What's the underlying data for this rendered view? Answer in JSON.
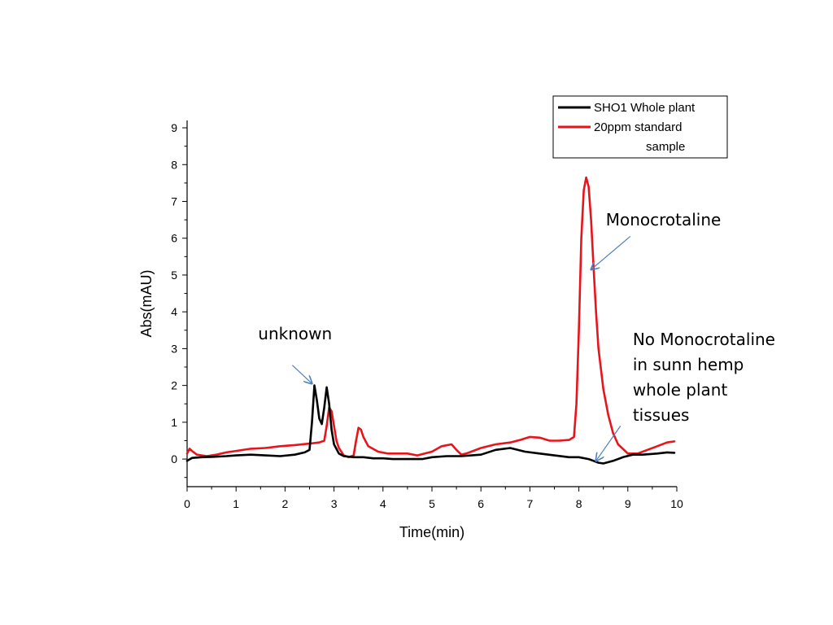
{
  "chart_data": {
    "type": "line",
    "xlabel": "Time(min)",
    "ylabel": "Abs(mAU)",
    "xlim": [
      0,
      10
    ],
    "ylim": [
      -0.75,
      9.2
    ],
    "x_ticks": [
      0,
      1,
      2,
      3,
      4,
      5,
      6,
      7,
      8,
      9,
      10
    ],
    "y_ticks": [
      0,
      1,
      2,
      3,
      4,
      5,
      6,
      7,
      8,
      9
    ],
    "grid": false,
    "legend_position": "top-right",
    "legend": [
      {
        "label_lines": [
          "SHO1 Whole plant"
        ],
        "color": "#000000"
      },
      {
        "label_lines": [
          "20ppm standard",
          "sample"
        ],
        "color": "#e8141b"
      }
    ],
    "series": [
      {
        "name": "SHO1 Whole plant",
        "color": "#000000",
        "x": [
          0,
          0.1,
          0.3,
          0.5,
          0.8,
          1.0,
          1.3,
          1.6,
          1.9,
          2.2,
          2.4,
          2.5,
          2.55,
          2.6,
          2.65,
          2.7,
          2.75,
          2.8,
          2.85,
          2.9,
          2.95,
          3.0,
          3.1,
          3.2,
          3.4,
          3.6,
          3.8,
          4.0,
          4.2,
          4.5,
          4.8,
          5.0,
          5.3,
          5.6,
          6.0,
          6.3,
          6.6,
          6.9,
          7.2,
          7.5,
          7.8,
          8.0,
          8.2,
          8.3,
          8.4,
          8.5,
          8.7,
          8.9,
          9.1,
          9.3,
          9.6,
          9.8,
          9.95
        ],
        "y": [
          -0.05,
          0.03,
          0.05,
          0.06,
          0.08,
          0.1,
          0.12,
          0.1,
          0.08,
          0.12,
          0.18,
          0.25,
          1.0,
          2.0,
          1.6,
          1.1,
          0.95,
          1.4,
          1.95,
          1.5,
          0.8,
          0.4,
          0.15,
          0.08,
          0.05,
          0.05,
          0.02,
          0.02,
          0.0,
          0.0,
          0.0,
          0.05,
          0.08,
          0.08,
          0.12,
          0.25,
          0.3,
          0.2,
          0.15,
          0.1,
          0.05,
          0.05,
          0.0,
          -0.05,
          -0.1,
          -0.12,
          -0.05,
          0.05,
          0.12,
          0.12,
          0.15,
          0.18,
          0.17
        ]
      },
      {
        "name": "20ppm standard sample",
        "color": "#e8141b",
        "x": [
          0,
          0.05,
          0.1,
          0.2,
          0.4,
          0.6,
          0.8,
          1.0,
          1.3,
          1.6,
          1.9,
          2.2,
          2.5,
          2.7,
          2.8,
          2.85,
          2.9,
          2.95,
          3.0,
          3.05,
          3.1,
          3.2,
          3.3,
          3.4,
          3.45,
          3.5,
          3.55,
          3.6,
          3.7,
          3.9,
          4.1,
          4.3,
          4.5,
          4.7,
          5.0,
          5.2,
          5.4,
          5.5,
          5.6,
          5.7,
          6.0,
          6.3,
          6.6,
          6.8,
          7.0,
          7.2,
          7.4,
          7.6,
          7.8,
          7.9,
          7.95,
          8.0,
          8.05,
          8.1,
          8.15,
          8.2,
          8.25,
          8.3,
          8.35,
          8.4,
          8.5,
          8.6,
          8.7,
          8.8,
          9.0,
          9.2,
          9.4,
          9.6,
          9.8,
          9.95
        ],
        "y": [
          0.15,
          0.28,
          0.22,
          0.12,
          0.08,
          0.12,
          0.18,
          0.22,
          0.28,
          0.3,
          0.35,
          0.38,
          0.42,
          0.45,
          0.5,
          0.9,
          1.4,
          1.3,
          0.9,
          0.5,
          0.3,
          0.1,
          0.05,
          0.1,
          0.5,
          0.85,
          0.8,
          0.6,
          0.35,
          0.2,
          0.15,
          0.15,
          0.15,
          0.1,
          0.2,
          0.35,
          0.4,
          0.25,
          0.12,
          0.15,
          0.3,
          0.4,
          0.45,
          0.52,
          0.6,
          0.58,
          0.5,
          0.5,
          0.52,
          0.6,
          1.5,
          3.5,
          6.0,
          7.3,
          7.65,
          7.4,
          6.5,
          5.2,
          4.0,
          3.0,
          1.9,
          1.2,
          0.7,
          0.4,
          0.15,
          0.15,
          0.25,
          0.35,
          0.45,
          0.48
        ]
      }
    ],
    "annotations": [
      {
        "lines": [
          "unknown"
        ],
        "text_x": 1.45,
        "text_y": 3.25,
        "arrow_from": [
          2.15,
          2.55
        ],
        "arrow_to": [
          2.55,
          2.05
        ]
      },
      {
        "lines": [
          "Monocrotaline"
        ],
        "text_x": 8.55,
        "text_y": 6.35,
        "arrow_from": [
          9.05,
          6.05
        ],
        "arrow_to": [
          8.25,
          5.15
        ]
      },
      {
        "lines": [
          "No Monocrotaline",
          "in sunn hemp",
          "whole plant",
          "tissues"
        ],
        "text_x": 9.1,
        "text_y": 3.1,
        "arrow_from": [
          8.85,
          0.9
        ],
        "arrow_to": [
          8.35,
          -0.05
        ]
      }
    ]
  }
}
